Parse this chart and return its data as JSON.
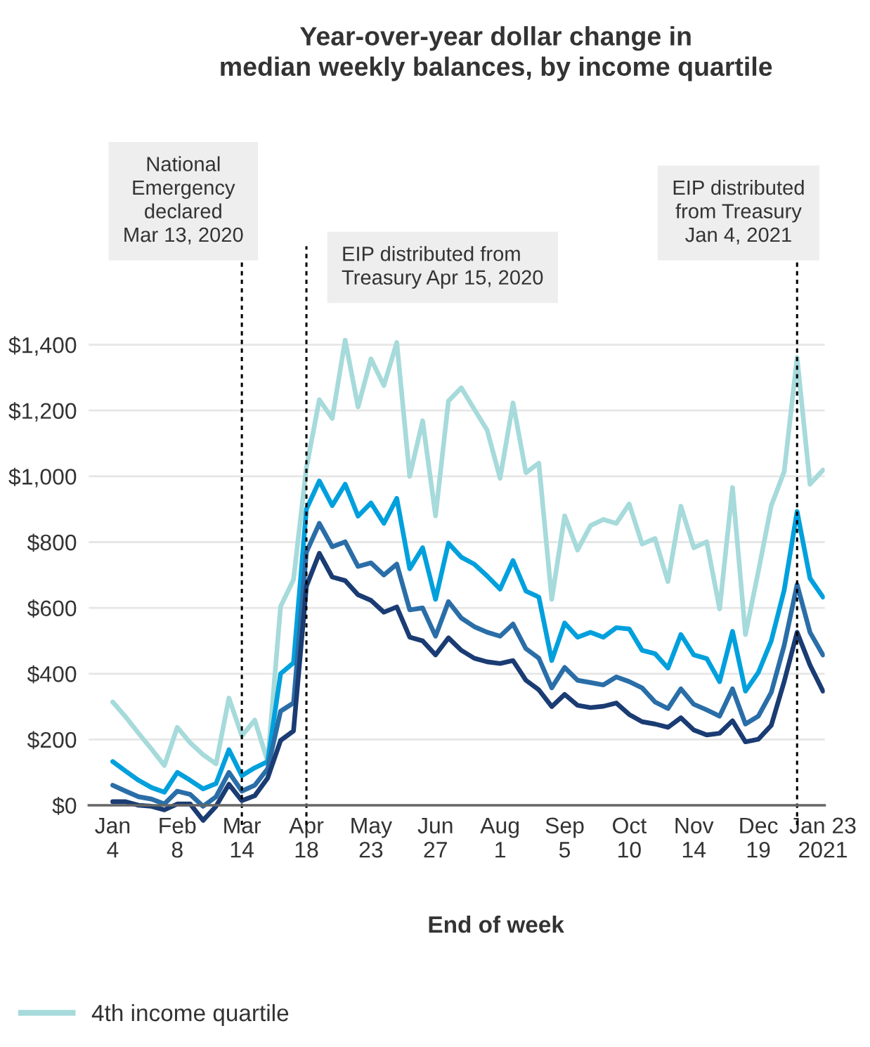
{
  "chart_data": {
    "type": "line",
    "title": "Year-over-year dollar change in\nmedian weekly balances, by income quartile",
    "xlabel": "End of week",
    "x": [
      "2020-01-04",
      "2020-01-11",
      "2020-01-18",
      "2020-01-25",
      "2020-02-01",
      "2020-02-08",
      "2020-02-15",
      "2020-02-22",
      "2020-02-29",
      "2020-03-07",
      "2020-03-14",
      "2020-03-21",
      "2020-03-28",
      "2020-04-04",
      "2020-04-11",
      "2020-04-18",
      "2020-04-25",
      "2020-05-02",
      "2020-05-09",
      "2020-05-16",
      "2020-05-23",
      "2020-05-30",
      "2020-06-06",
      "2020-06-13",
      "2020-06-20",
      "2020-06-27",
      "2020-07-04",
      "2020-07-11",
      "2020-07-18",
      "2020-07-25",
      "2020-08-01",
      "2020-08-08",
      "2020-08-15",
      "2020-08-22",
      "2020-08-29",
      "2020-09-05",
      "2020-09-12",
      "2020-09-19",
      "2020-09-26",
      "2020-10-03",
      "2020-10-10",
      "2020-10-17",
      "2020-10-24",
      "2020-10-31",
      "2020-11-07",
      "2020-11-14",
      "2020-11-21",
      "2020-11-28",
      "2020-12-05",
      "2020-12-12",
      "2020-12-19",
      "2020-12-26",
      "2021-01-02",
      "2021-01-09",
      "2021-01-16",
      "2021-01-23"
    ],
    "series": [
      {
        "name": "4th income quartile",
        "color": "#a6dadb",
        "values": [
          314,
          269,
          219,
          171,
          121,
          237,
          190,
          154,
          126,
          326,
          211,
          259,
          133,
          604,
          686,
          1026,
          1233,
          1176,
          1414,
          1211,
          1357,
          1276,
          1407,
          1000,
          1169,
          880,
          1229,
          1269,
          1204,
          1140,
          994,
          1223,
          1011,
          1040,
          626,
          880,
          776,
          850,
          869,
          857,
          916,
          794,
          811,
          680,
          909,
          783,
          801,
          597,
          966,
          519,
          711,
          911,
          1014,
          1361,
          976,
          1019
        ]
      },
      {
        "color": "#00a0dd",
        "values": [
          133,
          104,
          76,
          54,
          40,
          100,
          76,
          50,
          66,
          169,
          90,
          114,
          133,
          400,
          433,
          900,
          986,
          911,
          976,
          879,
          919,
          857,
          933,
          719,
          783,
          626,
          797,
          754,
          733,
          697,
          657,
          744,
          651,
          633,
          440,
          554,
          511,
          526,
          511,
          540,
          536,
          471,
          461,
          417,
          519,
          457,
          446,
          376,
          529,
          347,
          404,
          500,
          654,
          893,
          690,
          633
        ]
      },
      {
        "color": "#2a6ea8",
        "values": [
          61,
          43,
          26,
          19,
          4,
          43,
          33,
          -3,
          26,
          100,
          43,
          61,
          111,
          286,
          311,
          769,
          857,
          786,
          801,
          726,
          737,
          700,
          733,
          594,
          600,
          514,
          619,
          569,
          543,
          526,
          514,
          551,
          476,
          447,
          357,
          419,
          380,
          373,
          366,
          390,
          376,
          357,
          314,
          294,
          354,
          307,
          290,
          271,
          354,
          247,
          271,
          343,
          486,
          671,
          526,
          457
        ]
      },
      {
        "color": "#1a3c73",
        "values": [
          11,
          11,
          0,
          -3,
          -14,
          4,
          4,
          -46,
          -3,
          64,
          14,
          29,
          83,
          197,
          226,
          666,
          766,
          694,
          683,
          640,
          623,
          587,
          603,
          511,
          500,
          457,
          509,
          471,
          447,
          436,
          431,
          440,
          380,
          351,
          300,
          337,
          304,
          297,
          301,
          311,
          276,
          254,
          247,
          237,
          266,
          229,
          214,
          219,
          257,
          193,
          201,
          243,
          376,
          526,
          426,
          347
        ]
      }
    ],
    "xlim": [
      "2019-12-22",
      "2021-01-24"
    ],
    "xticks": [
      {
        "value": "2020-01-04",
        "label": "Jan\n4"
      },
      {
        "value": "2020-02-08",
        "label": "Feb\n8"
      },
      {
        "value": "2020-03-14",
        "label": "Mar\n14"
      },
      {
        "value": "2020-04-18",
        "label": "Apr\n18"
      },
      {
        "value": "2020-05-23",
        "label": "May\n23"
      },
      {
        "value": "2020-06-27",
        "label": "Jun\n27"
      },
      {
        "value": "2020-08-01",
        "label": "Aug\n1"
      },
      {
        "value": "2020-09-05",
        "label": "Sep\n5"
      },
      {
        "value": "2020-10-10",
        "label": "Oct\n10"
      },
      {
        "value": "2020-11-14",
        "label": "Nov\n14"
      },
      {
        "value": "2020-12-19",
        "label": "Dec\n19"
      },
      {
        "value": "2021-01-23",
        "label": "Jan 23\n2021"
      }
    ],
    "ylim": [
      -60,
      1700
    ],
    "yticks": [
      {
        "value": 0,
        "label": "$0"
      },
      {
        "value": 200,
        "label": "$200"
      },
      {
        "value": 400,
        "label": "$400"
      },
      {
        "value": 600,
        "label": "$600"
      },
      {
        "value": 800,
        "label": "$800"
      },
      {
        "value": 1000,
        "label": "$1,000"
      },
      {
        "value": 1200,
        "label": "$1,200"
      },
      {
        "value": 1400,
        "label": "$1,400"
      }
    ],
    "grid": "y",
    "legend": "bottom left",
    "ref_lines": [
      {
        "axis": "x",
        "value": "2020-03-14",
        "label": "National\nEmergency\ndeclared\nMar 13, 2020",
        "color": "#000000",
        "line_style": "dotted"
      },
      {
        "axis": "x",
        "value": "2020-04-18",
        "label": "EIP distributed from\nTreasury Apr 15, 2020",
        "color": "#000000",
        "line_style": "dotted"
      },
      {
        "axis": "x",
        "value": "2021-01-09",
        "label": "EIP distributed\nfrom Treasury\nJan 4, 2021",
        "color": "#000000",
        "line_style": "dotted"
      }
    ]
  }
}
